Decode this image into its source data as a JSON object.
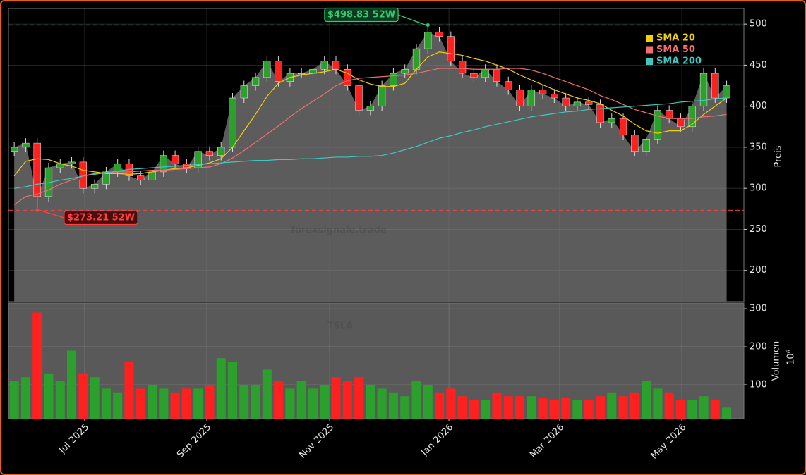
{
  "chart_data": [
    {
      "type": "candlestick",
      "watermark": "forexsignale.trade",
      "ylabel": "Preis",
      "xlim": [
        -0.5,
        63.5
      ],
      "ylim": [
        162,
        519
      ],
      "yticks": [
        200,
        250,
        300,
        350,
        400,
        450,
        500
      ],
      "grid": true,
      "up_color": "#2ca02c",
      "down_color": "#ff2020",
      "area_color": "#5c5c5c",
      "open": [
        345,
        350,
        355,
        290,
        325,
        330,
        332,
        300,
        305,
        320,
        330,
        315,
        310,
        320,
        340,
        330,
        325,
        345,
        340,
        350,
        410,
        425,
        435,
        455,
        430,
        440,
        440,
        445,
        455,
        445,
        425,
        395,
        400,
        425,
        440,
        445,
        470,
        490,
        485,
        455,
        440,
        435,
        445,
        430,
        420,
        400,
        420,
        415,
        410,
        400,
        405,
        402,
        380,
        385,
        365,
        345,
        360,
        395,
        385,
        375,
        400,
        440,
        410
      ],
      "high": [
        356,
        361,
        361,
        331,
        336,
        338,
        338,
        311,
        326,
        336,
        336,
        321,
        326,
        346,
        346,
        336,
        351,
        351,
        356,
        416,
        431,
        441,
        461,
        461,
        446,
        446,
        451,
        461,
        461,
        451,
        431,
        406,
        431,
        446,
        451,
        476,
        498.83,
        496,
        491,
        461,
        446,
        451,
        451,
        436,
        426,
        426,
        426,
        421,
        416,
        411,
        411,
        408,
        391,
        391,
        371,
        366,
        401,
        401,
        391,
        406,
        446,
        446,
        431
      ],
      "low": [
        339,
        344,
        273.21,
        284,
        319,
        324,
        294,
        294,
        299,
        314,
        309,
        304,
        304,
        314,
        324,
        319,
        319,
        334,
        334,
        344,
        404,
        419,
        429,
        424,
        424,
        434,
        434,
        439,
        439,
        419,
        389,
        389,
        394,
        419,
        434,
        439,
        464,
        479,
        449,
        434,
        429,
        429,
        424,
        414,
        394,
        394,
        409,
        404,
        394,
        394,
        396,
        374,
        374,
        359,
        339,
        339,
        354,
        379,
        369,
        369,
        394,
        404,
        404
      ],
      "close": [
        350,
        355,
        290,
        325,
        330,
        332,
        300,
        305,
        320,
        330,
        315,
        310,
        320,
        340,
        330,
        325,
        345,
        340,
        350,
        410,
        425,
        435,
        455,
        430,
        440,
        440,
        445,
        455,
        445,
        425,
        395,
        400,
        425,
        440,
        445,
        470,
        490,
        485,
        455,
        440,
        435,
        445,
        430,
        420,
        400,
        420,
        415,
        410,
        400,
        405,
        402,
        380,
        385,
        365,
        345,
        360,
        395,
        385,
        375,
        400,
        440,
        410,
        425
      ],
      "overlays": [
        {
          "name": "SMA 20",
          "color": "#f5d000",
          "values": [
            315,
            333,
            336,
            335,
            330,
            327,
            322,
            320,
            318,
            318,
            317,
            318,
            320,
            322,
            324,
            325,
            328,
            331,
            336,
            350,
            370,
            390,
            412,
            428,
            435,
            438,
            440,
            442,
            445,
            440,
            432,
            427,
            424,
            424,
            428,
            445,
            460,
            466,
            464,
            462,
            458,
            455,
            450,
            445,
            438,
            432,
            426,
            420,
            415,
            410,
            407,
            403,
            395,
            388,
            378,
            370,
            367,
            370,
            370,
            378,
            390,
            400,
            410
          ]
        },
        {
          "name": "SMA 50",
          "color": "#f07070",
          "values": [
            280,
            290,
            293,
            298,
            305,
            310,
            315,
            318,
            319,
            320,
            320,
            321,
            322,
            322,
            323,
            324,
            325,
            326,
            330,
            337,
            346,
            356,
            366,
            376,
            387,
            397,
            406,
            415,
            425,
            431,
            434,
            435,
            436,
            437,
            438,
            440,
            443,
            446,
            446,
            446,
            445,
            445,
            445,
            446,
            446,
            444,
            440,
            435,
            430,
            425,
            420,
            413,
            408,
            402,
            396,
            392,
            388,
            385,
            385,
            385,
            387,
            388,
            390
          ]
        },
        {
          "name": "SMA 200",
          "color": "#40c8c0",
          "values": [
            300,
            302,
            305,
            307,
            310,
            312,
            315,
            317,
            319,
            321,
            323,
            324,
            325,
            326,
            327,
            328,
            329,
            330,
            331,
            332,
            333,
            334,
            334,
            335,
            335,
            336,
            336,
            337,
            338,
            338,
            339,
            339,
            340,
            343,
            347,
            351,
            356,
            361,
            364,
            368,
            371,
            375,
            378,
            381,
            384,
            387,
            389,
            391,
            393,
            394,
            396,
            397,
            398,
            399,
            400,
            401,
            402,
            403,
            405,
            406,
            407,
            409,
            410
          ]
        }
      ],
      "legend": "upper right",
      "annotations": [
        {
          "text": "$498.83 52W",
          "value": 498.83,
          "color": "#2ecc71"
        },
        {
          "text": "$273.21 52W",
          "value": 273.21,
          "color": "#ff4040"
        }
      ]
    },
    {
      "type": "bar",
      "watermark": "TSLA",
      "ylabel": "Volumen",
      "yunit": "10⁶",
      "xlim": [
        -0.5,
        63.5
      ],
      "ylim": [
        11,
        315
      ],
      "yticks": [
        100,
        200,
        300
      ],
      "grid": true,
      "xticks": [
        {
          "value": 6.13,
          "label": "Jul 2025"
        },
        {
          "value": 16.76,
          "label": "Sep 2025"
        },
        {
          "value": 27.45,
          "label": "Nov 2025"
        },
        {
          "value": 37.83,
          "label": "Jan 2026"
        },
        {
          "value": 47.47,
          "label": "Mar 2026"
        },
        {
          "value": 58.1,
          "label": "May 2026"
        }
      ],
      "values": [
        110,
        120,
        290,
        130,
        110,
        190,
        130,
        120,
        90,
        80,
        160,
        90,
        100,
        90,
        80,
        90,
        90,
        100,
        170,
        160,
        100,
        100,
        140,
        110,
        90,
        110,
        90,
        100,
        120,
        110,
        120,
        100,
        90,
        80,
        70,
        110,
        100,
        80,
        90,
        70,
        60,
        60,
        80,
        70,
        70,
        70,
        65,
        60,
        65,
        60,
        60,
        70,
        80,
        70,
        80,
        110,
        90,
        80,
        60,
        60,
        70,
        60,
        40
      ]
    }
  ]
}
